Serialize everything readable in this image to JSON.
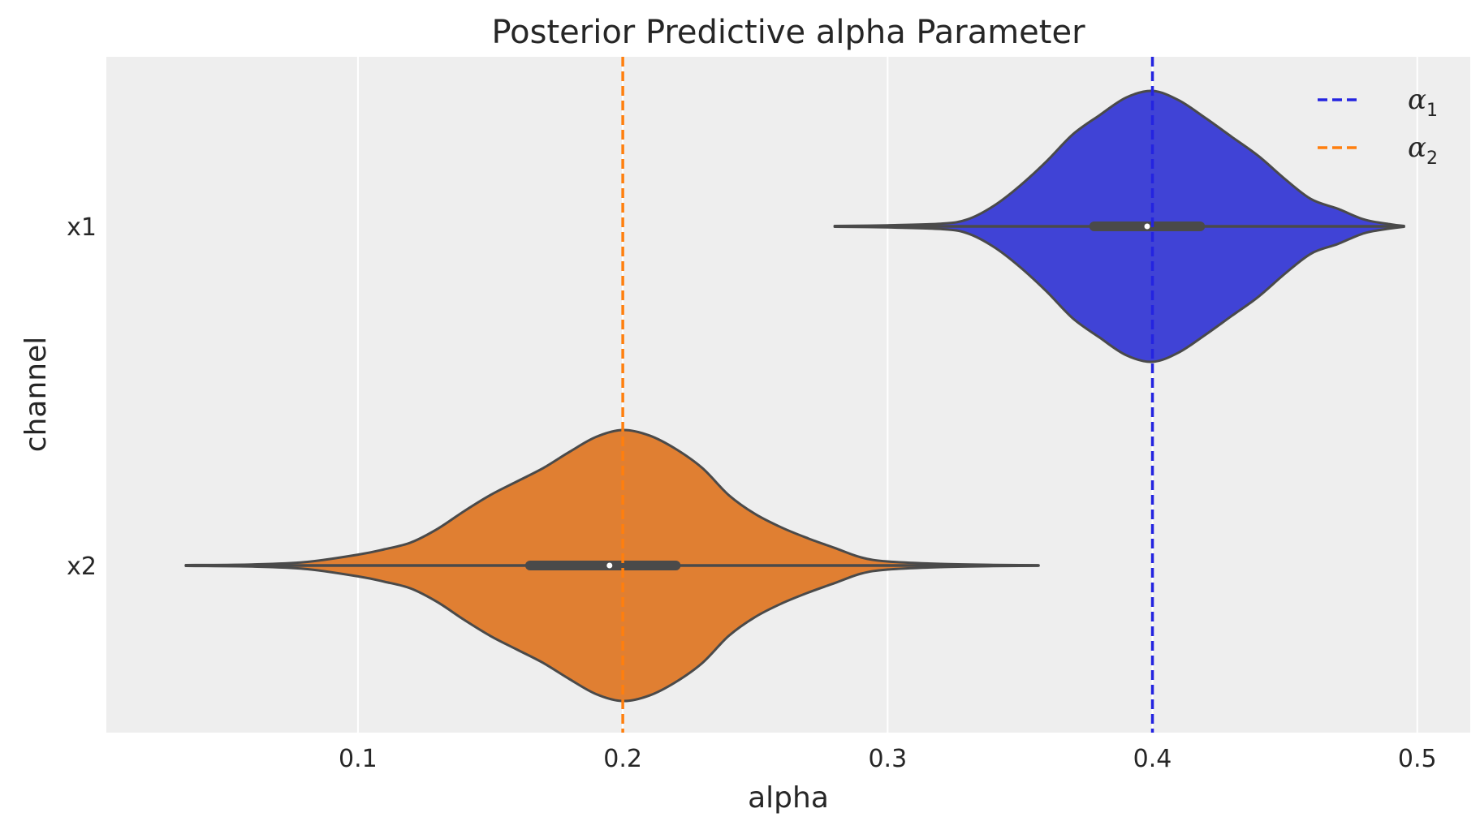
{
  "chart_data": {
    "type": "violin",
    "orientation": "horizontal",
    "title": "Posterior Predictive alpha Parameter",
    "xlabel": "alpha",
    "ylabel": "channel",
    "xlim": [
      0.005,
      0.52
    ],
    "xticks": [
      0.1,
      0.2,
      0.3,
      0.4,
      0.5
    ],
    "xtick_labels": [
      "0.1",
      "0.2",
      "0.3",
      "0.4",
      "0.5"
    ],
    "categories": [
      "x1",
      "x2"
    ],
    "grid": true,
    "legend_position": "top-right",
    "series": [
      {
        "category": "x1",
        "color": "#4043d6",
        "min": 0.28,
        "max": 0.495,
        "q1": 0.378,
        "median": 0.398,
        "q3": 0.418,
        "density": [
          [
            0.28,
            0.003
          ],
          [
            0.3,
            0.008
          ],
          [
            0.32,
            0.02
          ],
          [
            0.33,
            0.05
          ],
          [
            0.34,
            0.15
          ],
          [
            0.35,
            0.3
          ],
          [
            0.36,
            0.48
          ],
          [
            0.37,
            0.68
          ],
          [
            0.38,
            0.82
          ],
          [
            0.39,
            0.95
          ],
          [
            0.4,
            1.0
          ],
          [
            0.41,
            0.93
          ],
          [
            0.42,
            0.8
          ],
          [
            0.43,
            0.66
          ],
          [
            0.44,
            0.52
          ],
          [
            0.45,
            0.35
          ],
          [
            0.46,
            0.2
          ],
          [
            0.47,
            0.13
          ],
          [
            0.48,
            0.05
          ],
          [
            0.49,
            0.015
          ],
          [
            0.495,
            0.003
          ]
        ]
      },
      {
        "category": "x2",
        "color": "#e07f32",
        "min": 0.035,
        "max": 0.357,
        "q1": 0.165,
        "median": 0.195,
        "q3": 0.22,
        "density": [
          [
            0.035,
            0.003
          ],
          [
            0.06,
            0.008
          ],
          [
            0.08,
            0.025
          ],
          [
            0.1,
            0.08
          ],
          [
            0.11,
            0.12
          ],
          [
            0.12,
            0.17
          ],
          [
            0.13,
            0.27
          ],
          [
            0.14,
            0.4
          ],
          [
            0.15,
            0.52
          ],
          [
            0.16,
            0.62
          ],
          [
            0.17,
            0.72
          ],
          [
            0.18,
            0.84
          ],
          [
            0.19,
            0.95
          ],
          [
            0.2,
            1.0
          ],
          [
            0.21,
            0.96
          ],
          [
            0.22,
            0.86
          ],
          [
            0.23,
            0.72
          ],
          [
            0.24,
            0.52
          ],
          [
            0.25,
            0.38
          ],
          [
            0.26,
            0.28
          ],
          [
            0.27,
            0.2
          ],
          [
            0.28,
            0.13
          ],
          [
            0.29,
            0.06
          ],
          [
            0.3,
            0.03
          ],
          [
            0.32,
            0.012
          ],
          [
            0.34,
            0.005
          ],
          [
            0.357,
            0.002
          ]
        ]
      }
    ],
    "reference_lines": [
      {
        "value": 0.4,
        "color": "#2424e0",
        "legend_symbol": "α",
        "legend_subscript": "1"
      },
      {
        "value": 0.2,
        "color": "#ff7f0e",
        "legend_symbol": "α",
        "legend_subscript": "2"
      }
    ]
  }
}
